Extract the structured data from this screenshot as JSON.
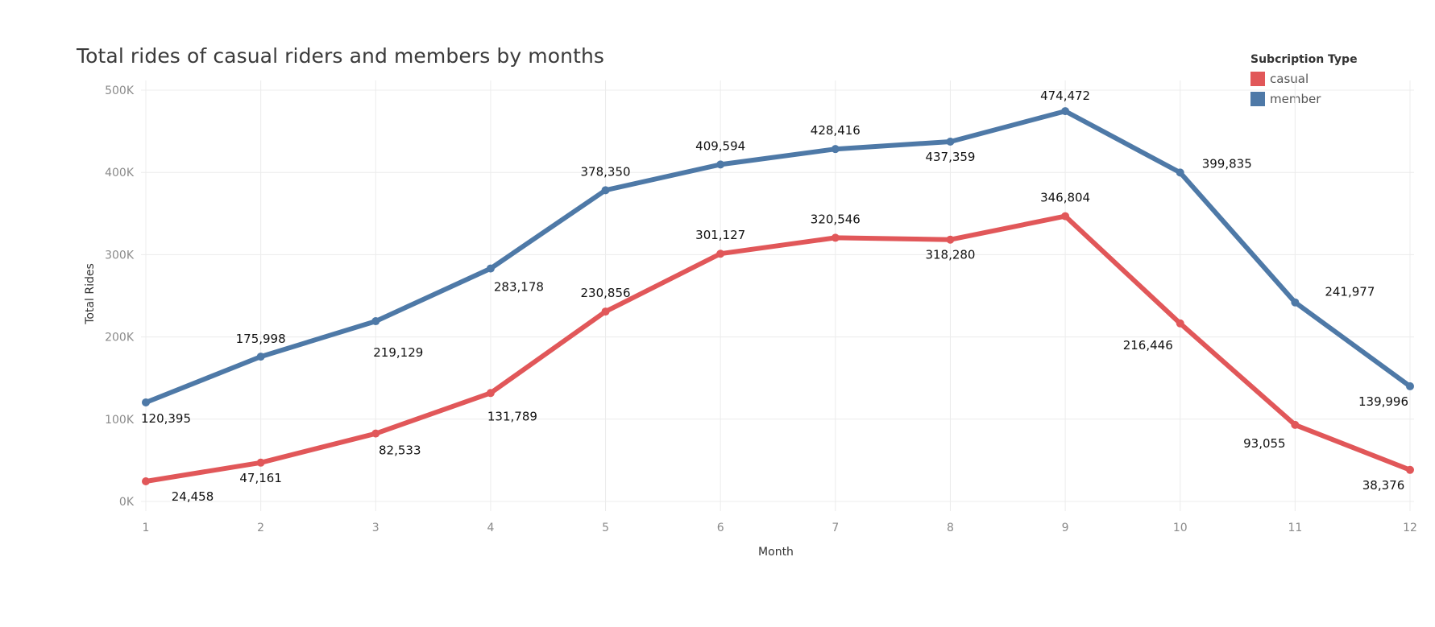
{
  "title": "Total rides of casual riders and members by months",
  "legend": {
    "title": "Subcription Type",
    "items": [
      {
        "label": "casual",
        "color": "#e15759"
      },
      {
        "label": "member",
        "color": "#4e79a7"
      }
    ]
  },
  "chart_data": {
    "type": "line",
    "title": "Total rides of casual riders and members by months",
    "xlabel": "Month",
    "ylabel": "Total Rides",
    "x": [
      1,
      2,
      3,
      4,
      5,
      6,
      7,
      8,
      9,
      10,
      11,
      12
    ],
    "y_ticks": [
      "0K",
      "100K",
      "200K",
      "300K",
      "400K",
      "500K"
    ],
    "ylim": [
      0,
      500000
    ],
    "grid": true,
    "legend_position": "top-right",
    "series": [
      {
        "name": "casual",
        "color": "#e15759",
        "values": [
          24458,
          47161,
          82533,
          131789,
          230856,
          301127,
          320546,
          318280,
          346804,
          216446,
          93055,
          38376
        ],
        "labels": [
          "24,458",
          "47,161",
          "82,533",
          "131,789",
          "230,856",
          "301,127",
          "320,546",
          "318,280",
          "346,804",
          "216,446",
          "93,055",
          "38,376"
        ]
      },
      {
        "name": "member",
        "color": "#4e79a7",
        "values": [
          120395,
          175998,
          219129,
          283178,
          378350,
          409594,
          428416,
          437359,
          474472,
          399835,
          241977,
          139996
        ],
        "labels": [
          "120,395",
          "175,998",
          "219,129",
          "283,178",
          "378,350",
          "409,594",
          "428,416",
          "437,359",
          "474,472",
          "399,835",
          "241,977",
          "139,996"
        ]
      }
    ]
  }
}
